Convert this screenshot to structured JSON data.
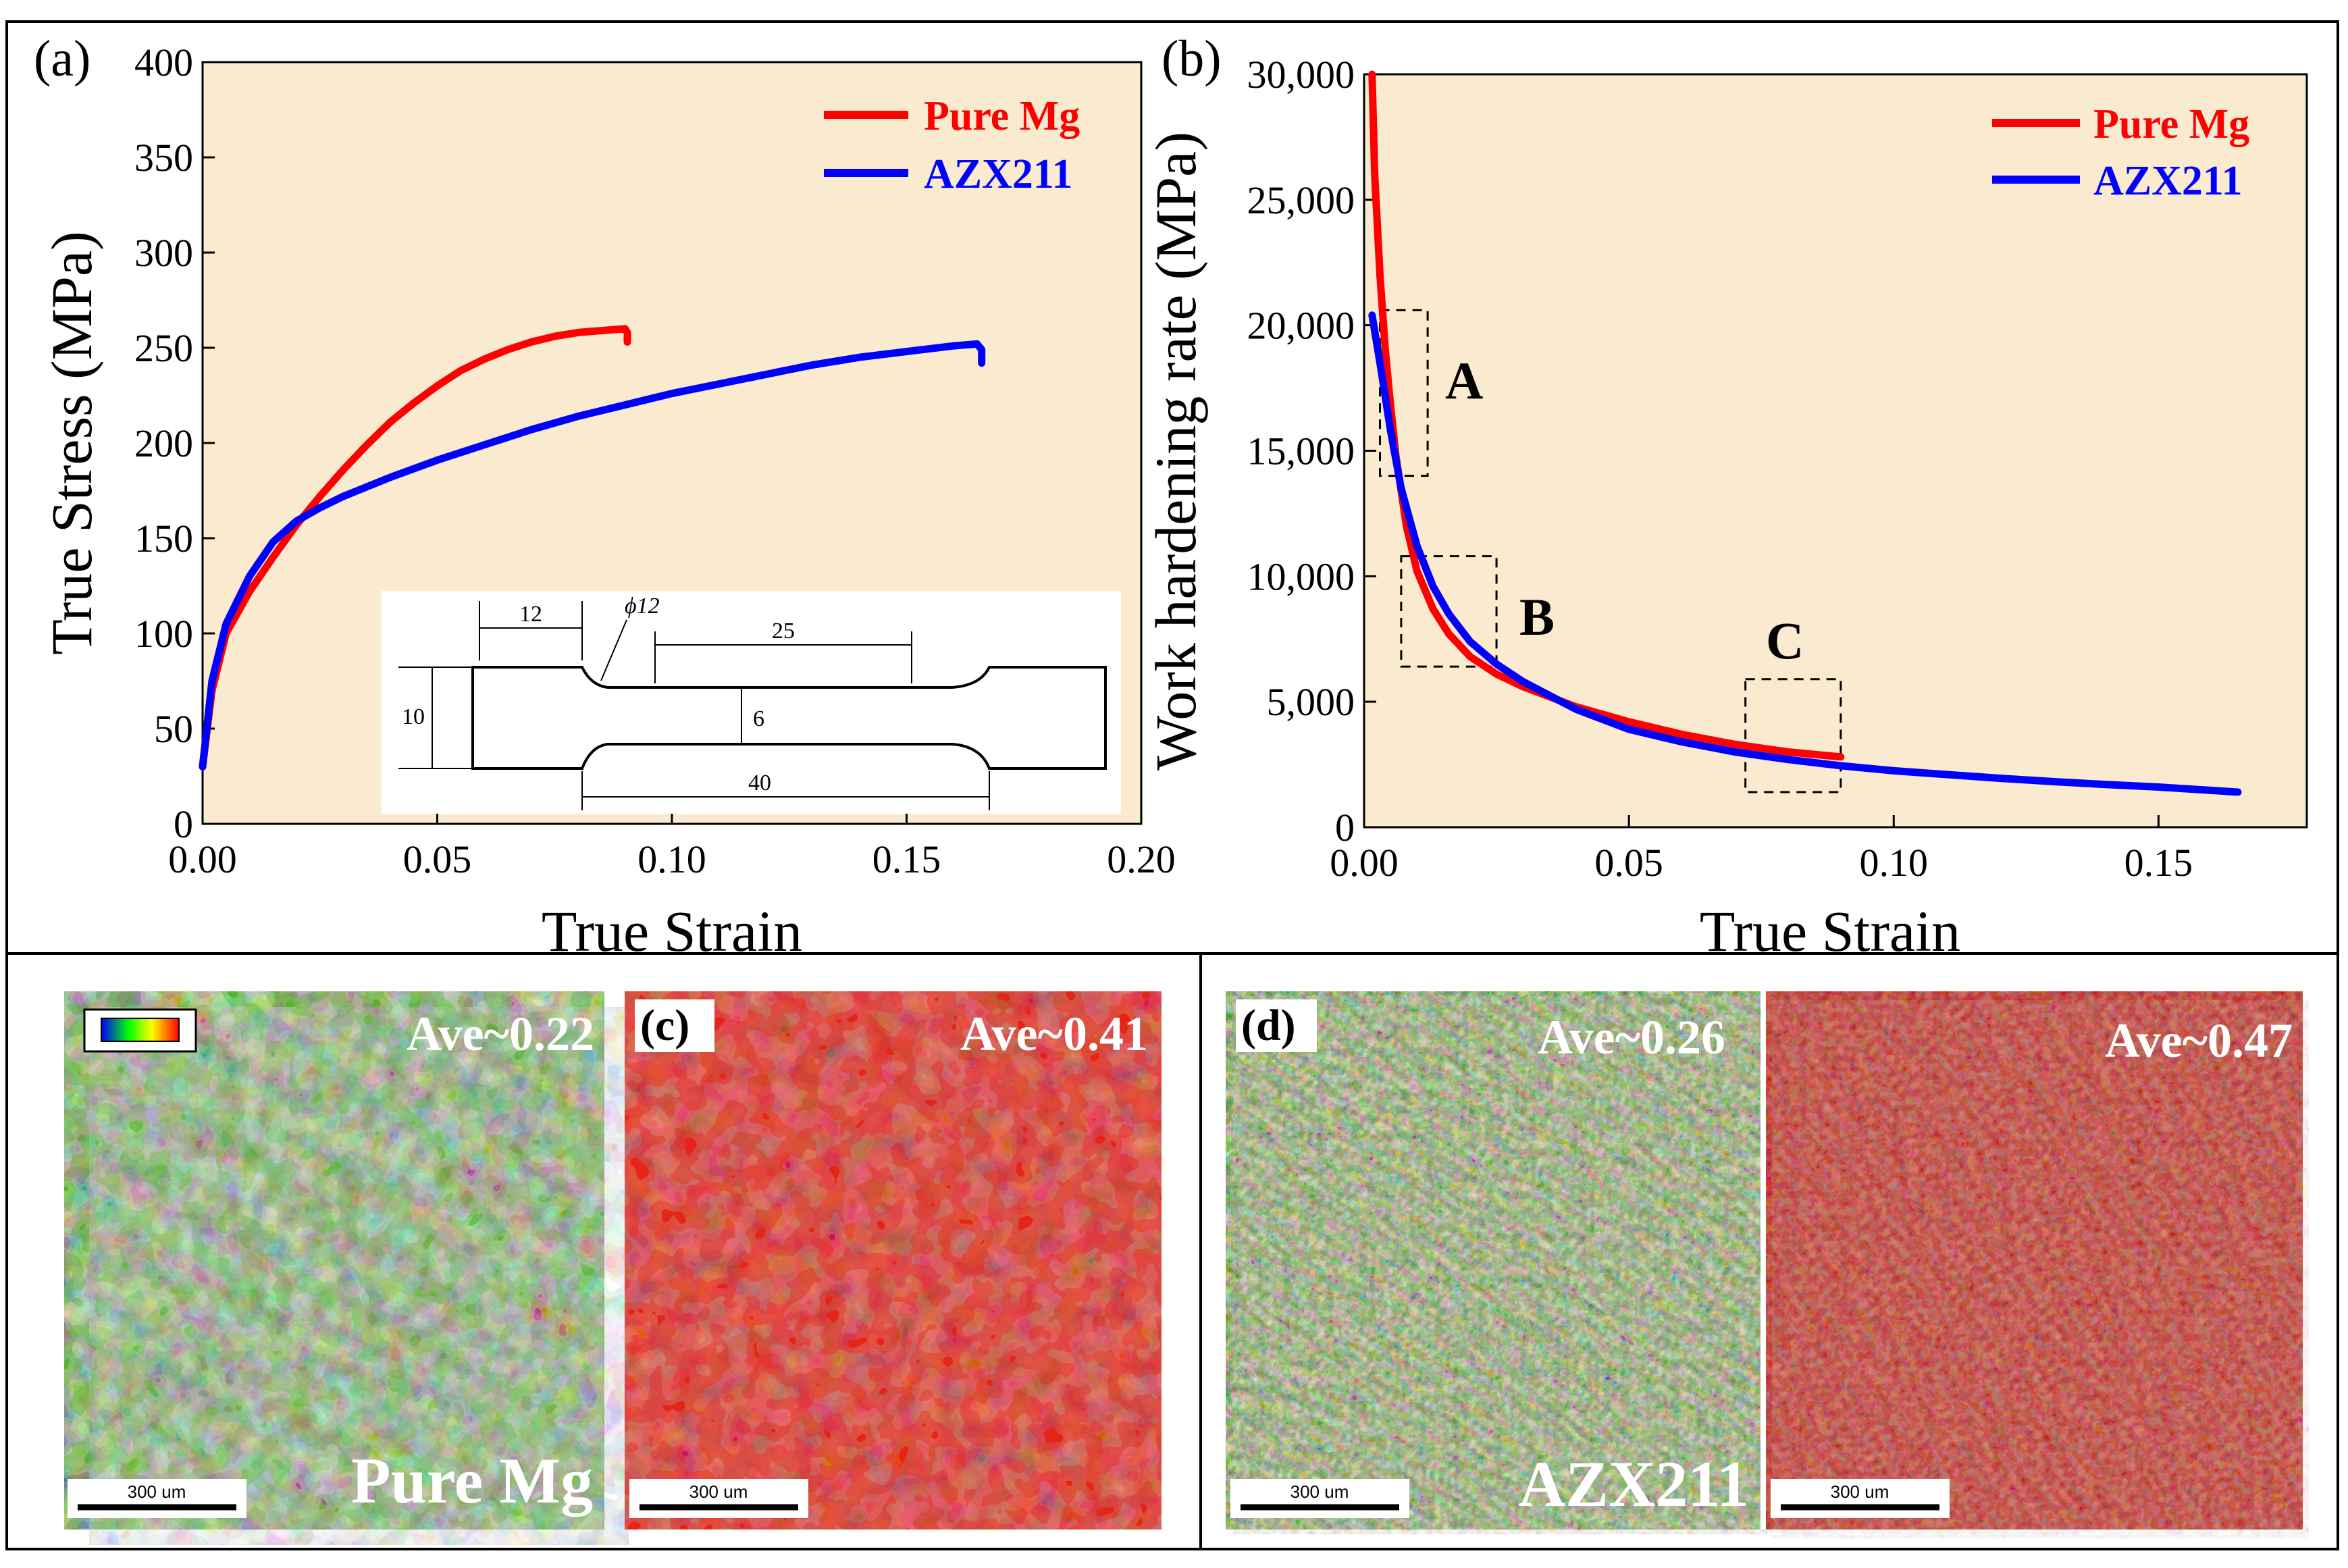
{
  "panel_a": {
    "label": "(a)",
    "inset": {
      "dim_12": "12",
      "dim_phi12": "ϕ12",
      "dim_25": "25",
      "dim_10": "10",
      "dim_6": "6",
      "dim_40": "40"
    }
  },
  "panel_b": {
    "label": "(b)",
    "box_labels": [
      "A",
      "B",
      "C"
    ]
  },
  "panel_c": {
    "label": "(c)",
    "ave_left": "Ave~0.22",
    "ave_right": "Ave~0.41",
    "material": "Pure Mg",
    "scale_bar": "300 um"
  },
  "panel_d": {
    "label": "(d)",
    "ave_left": "Ave~0.26",
    "ave_right": "Ave~0.47",
    "material": "AZX211",
    "scale_bar": "300 um"
  },
  "colors": {
    "plot_bg": "#faebd0",
    "pure_mg": "#ff0000",
    "azx211": "#0000ff"
  },
  "chart_data": [
    {
      "type": "line",
      "title": "",
      "xlabel": "True Strain",
      "ylabel": "True Stress (MPa)",
      "xlim": [
        0,
        0.2
      ],
      "ylim": [
        0,
        400
      ],
      "xticks": [
        "0.00",
        "0.05",
        "0.10",
        "0.15",
        "0.20"
      ],
      "yticks": [
        "0",
        "50",
        "100",
        "150",
        "200",
        "250",
        "300",
        "350",
        "400"
      ],
      "legend": [
        "Pure Mg",
        "AZX211"
      ],
      "legend_position": "top-right",
      "series": [
        {
          "name": "Pure Mg",
          "color": "#ff0000",
          "x": [
            0,
            0.002,
            0.005,
            0.01,
            0.015,
            0.02,
            0.025,
            0.03,
            0.035,
            0.04,
            0.045,
            0.05,
            0.055,
            0.06,
            0.065,
            0.07,
            0.075,
            0.08,
            0.085,
            0.09,
            0.0905,
            0.0905
          ],
          "y": [
            30,
            70,
            100,
            122,
            140,
            157,
            172,
            186,
            199,
            211,
            221,
            230,
            238,
            244,
            249,
            253,
            256,
            258,
            259,
            260,
            258,
            253
          ]
        },
        {
          "name": "AZX211",
          "color": "#0000ff",
          "x": [
            0,
            0.002,
            0.005,
            0.01,
            0.015,
            0.02,
            0.025,
            0.03,
            0.04,
            0.05,
            0.06,
            0.07,
            0.08,
            0.09,
            0.1,
            0.11,
            0.12,
            0.13,
            0.14,
            0.15,
            0.16,
            0.165,
            0.166,
            0.166
          ],
          "y": [
            30,
            75,
            105,
            130,
            148,
            159,
            166,
            172,
            182,
            191,
            199,
            207,
            214,
            220,
            226,
            231,
            236,
            241,
            245,
            248,
            251,
            252,
            249,
            242
          ]
        }
      ]
    },
    {
      "type": "line",
      "title": "",
      "xlabel": "True Strain",
      "ylabel": "Work hardening rate (MPa)",
      "xlim": [
        0,
        0.178
      ],
      "ylim": [
        0,
        30000
      ],
      "xticks": [
        "0.00",
        "0.05",
        "0.10",
        "0.15"
      ],
      "yticks": [
        "0",
        "5,000",
        "10,000",
        "15,000",
        "20,000",
        "25,000",
        "30,000"
      ],
      "legend": [
        "Pure Mg",
        "AZX211"
      ],
      "legend_position": "top-right",
      "annotations": [
        {
          "label": "A",
          "x_range": [
            0.003,
            0.012
          ],
          "y_range": [
            14000,
            20600
          ]
        },
        {
          "label": "B",
          "x_range": [
            0.007,
            0.025
          ],
          "y_range": [
            6400,
            10800
          ]
        },
        {
          "label": "C",
          "x_range": [
            0.072,
            0.09
          ],
          "y_range": [
            1400,
            5900
          ]
        }
      ],
      "series": [
        {
          "name": "Pure Mg",
          "color": "#ff0000",
          "x": [
            0.0015,
            0.002,
            0.003,
            0.004,
            0.005,
            0.006,
            0.008,
            0.01,
            0.013,
            0.016,
            0.02,
            0.025,
            0.03,
            0.04,
            0.05,
            0.06,
            0.07,
            0.08,
            0.09
          ],
          "y": [
            30000,
            26000,
            22000,
            19000,
            16800,
            14800,
            12000,
            10200,
            8700,
            7700,
            6800,
            6100,
            5600,
            4800,
            4200,
            3700,
            3300,
            3000,
            2800
          ]
        },
        {
          "name": "AZX211",
          "color": "#0000ff",
          "x": [
            0.0015,
            0.003,
            0.005,
            0.007,
            0.01,
            0.013,
            0.016,
            0.02,
            0.025,
            0.03,
            0.04,
            0.05,
            0.06,
            0.07,
            0.08,
            0.09,
            0.1,
            0.11,
            0.12,
            0.13,
            0.14,
            0.15,
            0.165
          ],
          "y": [
            20400,
            18500,
            15800,
            13500,
            11200,
            9600,
            8500,
            7400,
            6500,
            5800,
            4700,
            3900,
            3400,
            3000,
            2700,
            2450,
            2250,
            2100,
            1950,
            1820,
            1700,
            1600,
            1400
          ]
        }
      ]
    }
  ]
}
